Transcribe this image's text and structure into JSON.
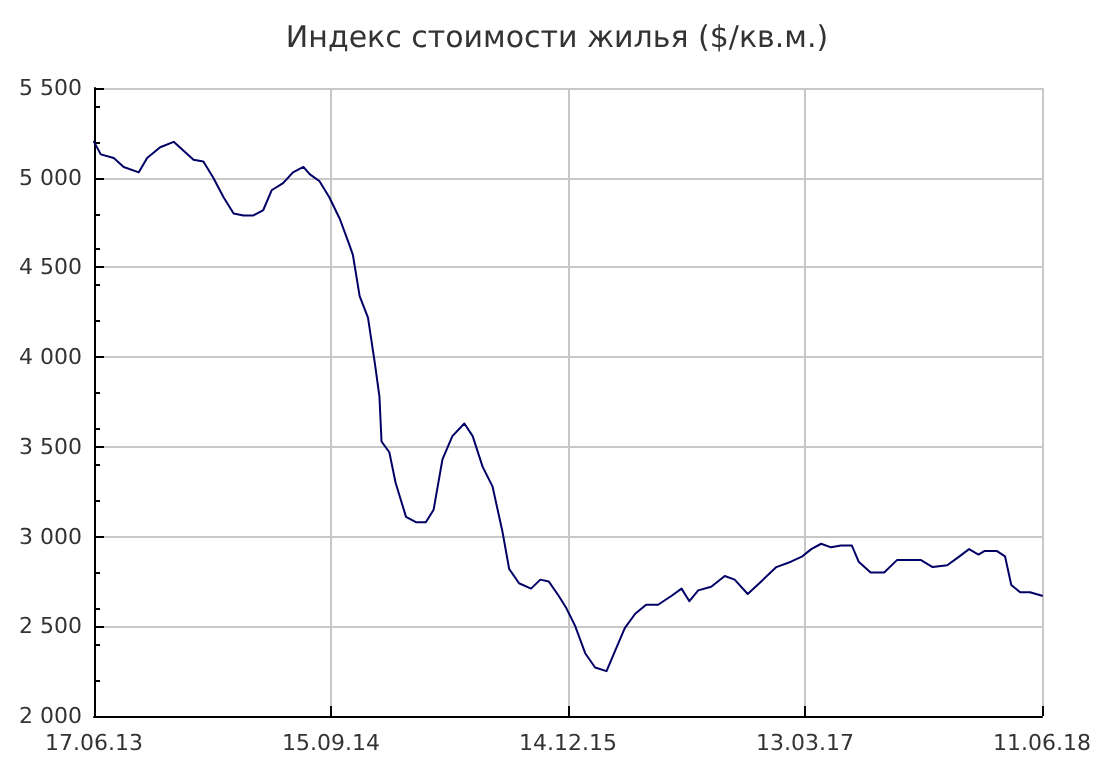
{
  "chart_data": {
    "type": "line",
    "title": "Индекс стоимости жилья ($/кв.м.)",
    "x": [
      "2013-06-17",
      "2013-06-30",
      "2013-07-25",
      "2013-08-13",
      "2013-09-11",
      "2013-09-27",
      "2013-10-22",
      "2013-11-17",
      "2013-12-06",
      "2013-12-25",
      "2014-01-13",
      "2014-02-01",
      "2014-02-21",
      "2014-03-12",
      "2014-03-31",
      "2014-04-19",
      "2014-05-08",
      "2014-05-24",
      "2014-06-15",
      "2014-07-04",
      "2014-07-24",
      "2014-08-05",
      "2014-08-24",
      "2014-09-12",
      "2014-10-02",
      "2014-10-21",
      "2014-10-27",
      "2014-11-09",
      "2014-11-25",
      "2014-12-08",
      "2014-12-17",
      "2014-12-21",
      "2015-01-05",
      "2015-01-17",
      "2015-02-06",
      "2015-02-25",
      "2015-03-16",
      "2015-03-31",
      "2015-04-17",
      "2015-05-06",
      "2015-05-29",
      "2015-06-14",
      "2015-07-03",
      "2015-07-22",
      "2015-08-10",
      "2015-08-23",
      "2015-09-11",
      "2015-10-04",
      "2015-10-22",
      "2015-11-07",
      "2015-11-26",
      "2015-12-11",
      "2015-12-28",
      "2016-01-16",
      "2016-02-04",
      "2016-02-26",
      "2016-03-13",
      "2016-04-01",
      "2016-04-21",
      "2016-05-12",
      "2016-06-04",
      "2016-06-30",
      "2016-07-19",
      "2016-08-03",
      "2016-08-20",
      "2016-09-14",
      "2016-10-10",
      "2016-10-29",
      "2016-11-23",
      "2016-12-19",
      "2017-01-17",
      "2017-02-14",
      "2017-03-08",
      "2017-03-25",
      "2017-04-13",
      "2017-05-02",
      "2017-05-21",
      "2017-06-11",
      "2017-06-24",
      "2017-07-17",
      "2017-08-12",
      "2017-09-06",
      "2017-10-02",
      "2017-10-21",
      "2017-11-13",
      "2017-12-11",
      "2017-12-30",
      "2018-01-22",
      "2018-02-09",
      "2018-02-21",
      "2018-03-16",
      "2018-04-01",
      "2018-04-13",
      "2018-04-30",
      "2018-05-19",
      "2018-06-11"
    ],
    "series": [
      {
        "color": "#000066",
        "values": [
          5200,
          5130,
          5110,
          5060,
          5030,
          5110,
          5170,
          5200,
          5150,
          5100,
          5090,
          5000,
          4890,
          4800,
          4790,
          4790,
          4820,
          4930,
          4970,
          5030,
          5060,
          5020,
          4980,
          4890,
          4770,
          4620,
          4570,
          4340,
          4220,
          3970,
          3780,
          3530,
          3470,
          3300,
          3110,
          3080,
          3080,
          3150,
          3430,
          3560,
          3630,
          3560,
          3390,
          3280,
          3030,
          2820,
          2740,
          2710,
          2760,
          2750,
          2670,
          2600,
          2500,
          2350,
          2270,
          2250,
          2360,
          2490,
          2570,
          2620,
          2620,
          2670,
          2710,
          2640,
          2700,
          2720,
          2780,
          2760,
          2680,
          2750,
          2830,
          2860,
          2890,
          2930,
          2960,
          2940,
          2950,
          2950,
          2860,
          2800,
          2800,
          2870,
          2870,
          2870,
          2830,
          2840,
          2880,
          2930,
          2900,
          2920,
          2920,
          2890,
          2730,
          2690,
          2690,
          2670
        ]
      }
    ],
    "xlim": [
      "2013-06-17",
      "2018-06-11"
    ],
    "xticks": [
      {
        "value": "2013-06-17",
        "label": "17.06.13"
      },
      {
        "value": "2014-09-15",
        "label": "15.09.14"
      },
      {
        "value": "2015-12-14",
        "label": "14.12.15"
      },
      {
        "value": "2017-03-13",
        "label": "13.03.17"
      },
      {
        "value": "2018-06-11",
        "label": "11.06.18"
      }
    ],
    "ylim": [
      2000,
      5500
    ],
    "yticks": [
      {
        "value": 2000,
        "label": "2 000"
      },
      {
        "value": 2500,
        "label": "2 500"
      },
      {
        "value": 3000,
        "label": "3 000"
      },
      {
        "value": 3500,
        "label": "3 500"
      },
      {
        "value": 4000,
        "label": "4 000"
      },
      {
        "value": 4500,
        "label": "4 500"
      },
      {
        "value": 5000,
        "label": "5 000"
      },
      {
        "value": 5500,
        "label": "5 500"
      }
    ],
    "grid": true,
    "marker": "none",
    "line_style": "solid"
  }
}
